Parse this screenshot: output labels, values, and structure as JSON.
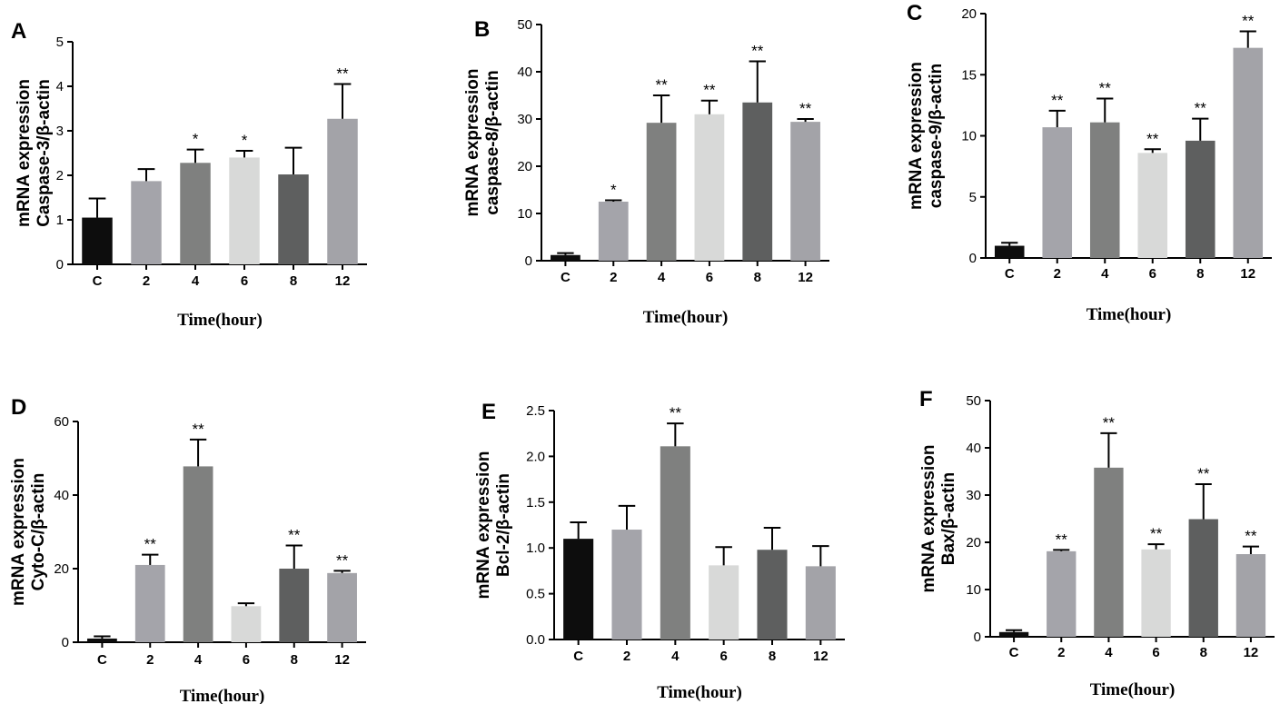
{
  "figure": {
    "colors": [
      "#0d0d0d",
      "#a4a4aa",
      "#7f807f",
      "#d8d9d8",
      "#5e5f5f",
      "#a3a3a8"
    ]
  },
  "chart_data": [
    {
      "type": "bar",
      "panel_label": "A",
      "categories": [
        "C",
        "2",
        "4",
        "6",
        "8",
        "12"
      ],
      "values": [
        1.05,
        1.87,
        2.28,
        2.4,
        2.02,
        3.27
      ],
      "errors": [
        0.43,
        0.27,
        0.3,
        0.15,
        0.6,
        0.78
      ],
      "significance": [
        "",
        "",
        "*",
        "*",
        "",
        "**"
      ],
      "ylabel_line1": "mRNA expression",
      "ylabel_line2": "Caspase-3/β-actin",
      "xlabel": "Time(hour)",
      "ylim": [
        0,
        5
      ],
      "yticks": [
        0,
        1,
        2,
        3,
        4,
        5
      ],
      "ytick_labels": [
        "0",
        "1",
        "2",
        "3",
        "4",
        "5"
      ]
    },
    {
      "type": "bar",
      "panel_label": "B",
      "categories": [
        "C",
        "2",
        "4",
        "6",
        "8",
        "12"
      ],
      "values": [
        1.2,
        12.5,
        29.2,
        31.0,
        33.5,
        29.4
      ],
      "errors": [
        0.4,
        0.3,
        5.8,
        2.9,
        8.7,
        0.6
      ],
      "significance": [
        "",
        "*",
        "**",
        "**",
        "**",
        "**"
      ],
      "ylabel_line1": "mRNA expression",
      "ylabel_line2": "caspase-8/β-actin",
      "xlabel": "Time(hour)",
      "ylim": [
        0,
        50
      ],
      "yticks": [
        0,
        10,
        20,
        30,
        40,
        50
      ],
      "ytick_labels": [
        "0",
        "10",
        "20",
        "30",
        "40",
        "50"
      ]
    },
    {
      "type": "bar",
      "panel_label": "C",
      "categories": [
        "C",
        "2",
        "4",
        "6",
        "8",
        "12"
      ],
      "values": [
        1.0,
        10.7,
        11.1,
        8.6,
        9.6,
        17.2
      ],
      "errors": [
        0.25,
        1.35,
        1.95,
        0.3,
        1.8,
        1.35
      ],
      "significance": [
        "",
        "**",
        "**",
        "**",
        "**",
        "**"
      ],
      "ylabel_line1": "mRNA expression",
      "ylabel_line2": "caspase-9/β-actin",
      "xlabel": "Time(hour)",
      "ylim": [
        0,
        20
      ],
      "yticks": [
        0,
        5,
        10,
        15,
        20
      ],
      "ytick_labels": [
        "0",
        "5",
        "10",
        "15",
        "20"
      ]
    },
    {
      "type": "bar",
      "panel_label": "D",
      "categories": [
        "C",
        "2",
        "4",
        "6",
        "8",
        "12"
      ],
      "values": [
        1.0,
        21.0,
        47.8,
        9.8,
        20.0,
        18.8
      ],
      "errors": [
        0.6,
        2.8,
        7.3,
        0.8,
        6.3,
        0.6
      ],
      "significance": [
        "",
        "**",
        "**",
        "",
        "**",
        "**"
      ],
      "ylabel_line1": "mRNA expression",
      "ylabel_line2": "Cyto-C/β-actin",
      "xlabel": "Time(hour)",
      "ylim": [
        0,
        60
      ],
      "yticks": [
        0,
        20,
        40,
        60
      ],
      "ytick_labels": [
        "0",
        "20",
        "40",
        "60"
      ]
    },
    {
      "type": "bar",
      "panel_label": "E",
      "categories": [
        "C",
        "2",
        "4",
        "6",
        "8",
        "12"
      ],
      "values": [
        1.1,
        1.2,
        2.11,
        0.81,
        0.98,
        0.8
      ],
      "errors": [
        0.18,
        0.26,
        0.25,
        0.2,
        0.24,
        0.22
      ],
      "significance": [
        "",
        "",
        "**",
        "",
        "",
        ""
      ],
      "ylabel_line1": "mRNA expression",
      "ylabel_line2": "Bcl-2/β-actin",
      "xlabel": "Time(hour)",
      "ylim": [
        0,
        2.5
      ],
      "yticks": [
        0,
        0.5,
        1,
        1.5,
        2,
        2.5
      ],
      "ytick_labels": [
        "0.0",
        "0.5",
        "1.0",
        "1.5",
        "2.0",
        "2.5"
      ]
    },
    {
      "type": "bar",
      "panel_label": "F",
      "categories": [
        "C",
        "2",
        "4",
        "6",
        "8",
        "12"
      ],
      "values": [
        1.0,
        18.1,
        35.8,
        18.5,
        24.9,
        17.5
      ],
      "errors": [
        0.4,
        0.3,
        7.3,
        1.1,
        7.4,
        1.6
      ],
      "significance": [
        "",
        "**",
        "**",
        "**",
        "**",
        "**"
      ],
      "ylabel_line1": "mRNA expression",
      "ylabel_line2": "Bax/β-actin",
      "xlabel": "Time(hour)",
      "ylim": [
        0,
        50
      ],
      "yticks": [
        0,
        10,
        20,
        30,
        40,
        50
      ],
      "ytick_labels": [
        "0",
        "10",
        "20",
        "30",
        "40",
        "50"
      ]
    }
  ]
}
